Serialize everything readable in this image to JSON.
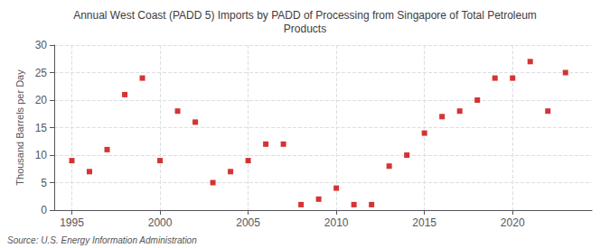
{
  "chart_data": {
    "type": "scatter",
    "title": "Annual West Coast (PADD 5) Imports by PADD of Processing from Singapore of Total Petroleum\nProducts",
    "ylabel": "Thousand Barrels per Day",
    "annotations": [
      "Source: U.S. Energy Information Administration"
    ],
    "x": [
      1995,
      1996,
      1997,
      1998,
      1999,
      2000,
      2001,
      2002,
      2003,
      2004,
      2005,
      2006,
      2007,
      2008,
      2009,
      2010,
      2011,
      2012,
      2013,
      2014,
      2015,
      2016,
      2017,
      2018,
      2019,
      2020,
      2021,
      2022,
      2023
    ],
    "values": [
      9,
      7,
      11,
      21,
      24,
      9,
      18,
      16,
      5,
      7,
      9,
      12,
      12,
      1,
      2,
      4,
      1,
      1,
      8,
      10,
      14,
      17,
      18,
      20,
      24,
      24,
      27,
      18,
      25
    ],
    "color": "#cc0000",
    "marker": "square",
    "xlim": [
      1994,
      2024.5
    ],
    "xticks": [
      1995,
      2000,
      2005,
      2010,
      2015,
      2020
    ],
    "ylim": [
      0,
      30
    ],
    "yticks": [
      0,
      5,
      10,
      15,
      20,
      25,
      30
    ],
    "grid": true
  }
}
